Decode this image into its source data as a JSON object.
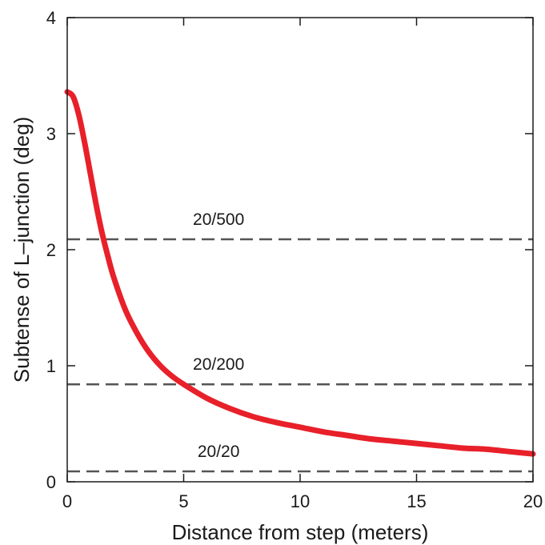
{
  "chart_data": {
    "type": "line",
    "title": "",
    "xlabel": "Distance from step (meters)",
    "ylabel": "Subtense of L–junction (deg)",
    "xlim": [
      0,
      20
    ],
    "ylim": [
      0,
      4
    ],
    "x_ticks": [
      "0",
      "5",
      "10",
      "15",
      "20"
    ],
    "y_ticks": [
      "0",
      "1",
      "2",
      "3",
      "4"
    ],
    "grid": false,
    "legend": "none",
    "series": [
      {
        "color": "#e8202a",
        "x": [
          0,
          0.25,
          0.5,
          0.75,
          1,
          1.25,
          1.5,
          1.75,
          2,
          2.5,
          3,
          3.5,
          4,
          4.5,
          5,
          6,
          7,
          8,
          9,
          10,
          11,
          12,
          13,
          14,
          15,
          16,
          17,
          18,
          19,
          20
        ],
        "y": [
          3.36,
          3.32,
          3.16,
          2.92,
          2.65,
          2.38,
          2.14,
          1.94,
          1.76,
          1.48,
          1.28,
          1.12,
          1.0,
          0.91,
          0.84,
          0.72,
          0.63,
          0.56,
          0.51,
          0.47,
          0.43,
          0.4,
          0.37,
          0.35,
          0.33,
          0.31,
          0.29,
          0.28,
          0.26,
          0.24
        ]
      }
    ],
    "reference_lines": [
      {
        "label": "20/500",
        "y": 2.09,
        "style": "dashed",
        "color": "#555555"
      },
      {
        "label": "20/200",
        "y": 0.84,
        "style": "dashed",
        "color": "#555555"
      },
      {
        "label": "20/20",
        "y": 0.09,
        "style": "dashed",
        "color": "#555555"
      }
    ]
  }
}
